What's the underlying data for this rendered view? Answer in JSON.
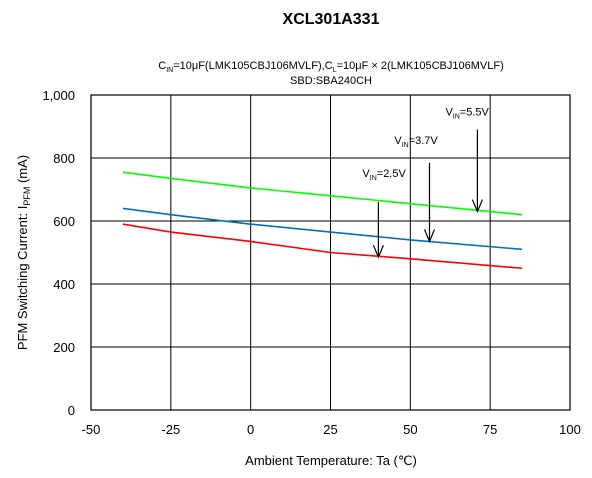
{
  "chart_data": {
    "type": "line",
    "title": "XCL301A331",
    "subtitle_line1": {
      "parts": [
        "C",
        "IN",
        "=10μF(LMK105CBJ106MVLF),C",
        "L",
        "=10μF × 2(LMK105CBJ106MVLF)"
      ]
    },
    "subtitle_line2": "SBD:SBA240CH",
    "xlabel": "Ambient Temperature: Ta (℃)",
    "ylabel": {
      "main": "PFM Switching Current: I",
      "sub": "PFM",
      "unit": " (mA)"
    },
    "xlim": [
      -50,
      100
    ],
    "ylim": [
      0,
      1000
    ],
    "xticks": [
      -50,
      -25,
      0,
      25,
      50,
      75,
      100
    ],
    "xtick_labels": [
      "-50",
      "-25",
      "0",
      "25",
      "50",
      "75",
      "100"
    ],
    "yticks": [
      0,
      200,
      400,
      600,
      800,
      1000
    ],
    "ytick_labels": [
      "0",
      "200",
      "400",
      "600",
      "800",
      "1,000"
    ],
    "grid": true,
    "series": [
      {
        "name": "VIN=2.5V",
        "color": "#ff0000",
        "x": [
          -40,
          -25,
          0,
          25,
          50,
          85
        ],
        "y": [
          590,
          565,
          535,
          500,
          480,
          450
        ]
      },
      {
        "name": "VIN=3.7V",
        "color": "#0070c0",
        "x": [
          -40,
          -25,
          0,
          25,
          50,
          85
        ],
        "y": [
          640,
          620,
          590,
          565,
          540,
          510
        ]
      },
      {
        "name": "VIN=5.5V",
        "color": "#00ff00",
        "x": [
          -40,
          -25,
          0,
          25,
          50,
          85
        ],
        "y": [
          755,
          735,
          705,
          680,
          655,
          620
        ]
      }
    ],
    "annotations": [
      {
        "label": {
          "main": "V",
          "sub": "IN",
          "tail": "=2.5V"
        },
        "text_x": 35,
        "text_y": 740,
        "arrow_x": 40,
        "arrow_top": 660,
        "arrow_bottom": 485
      },
      {
        "label": {
          "main": "V",
          "sub": "IN",
          "tail": "=3.7V"
        },
        "text_x": 45,
        "text_y": 845,
        "arrow_x": 56,
        "arrow_top": 785,
        "arrow_bottom": 535
      },
      {
        "label": {
          "main": "V",
          "sub": "IN",
          "tail": "=5.5V"
        },
        "text_x": 61,
        "text_y": 935,
        "arrow_x": 71,
        "arrow_top": 890,
        "arrow_bottom": 630
      }
    ]
  }
}
